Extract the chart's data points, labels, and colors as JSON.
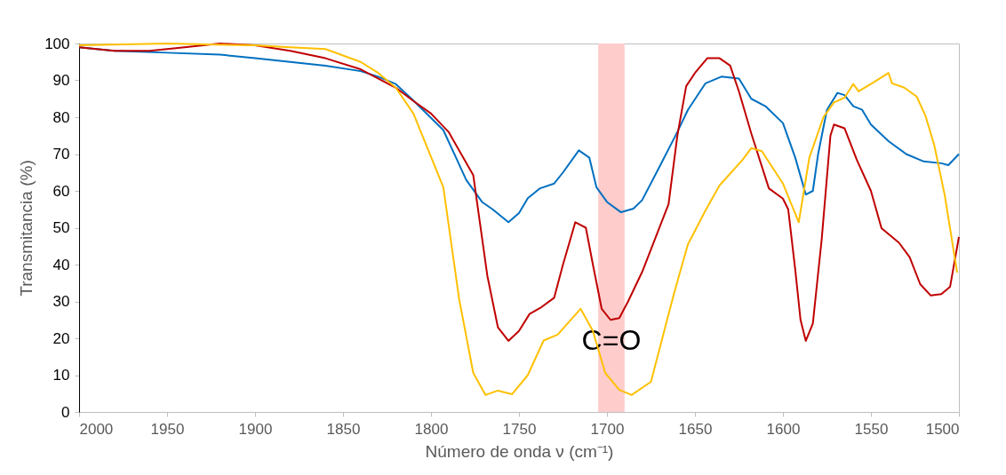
{
  "chart_data": {
    "type": "line",
    "xlabel": "Número de onda ν (cm⁻¹)",
    "ylabel": "Transmitancia (%)",
    "xlim": [
      2000,
      1500
    ],
    "xticks": [
      2000,
      1950,
      1900,
      1850,
      1800,
      1750,
      1700,
      1650,
      1600,
      1550,
      1500
    ],
    "ylim": [
      0,
      100
    ],
    "yticks": [
      0,
      10,
      20,
      30,
      40,
      50,
      60,
      70,
      80,
      90,
      100
    ],
    "grid": false,
    "marker": "none",
    "line_style": "solid",
    "bands": [
      {
        "axis": "x",
        "from": 1705,
        "to": 1690,
        "color": "#ffcccc",
        "label": "C=O"
      }
    ],
    "series": [
      {
        "color": "#0070c0",
        "x": [
          2000,
          1980,
          1950,
          1920,
          1900,
          1880,
          1860,
          1840,
          1830,
          1820,
          1810,
          1793,
          1780,
          1771,
          1765,
          1756,
          1750,
          1745,
          1738,
          1730,
          1725,
          1716,
          1710,
          1706,
          1700,
          1692,
          1685,
          1680,
          1670,
          1660,
          1654,
          1644,
          1635,
          1625,
          1618,
          1610,
          1600,
          1593,
          1587,
          1583,
          1580,
          1575,
          1569,
          1565,
          1560,
          1555,
          1550,
          1540,
          1530,
          1520,
          1510,
          1506,
          1500
        ],
        "values": [
          99,
          98,
          97.5,
          97,
          96,
          95,
          94,
          92.5,
          91,
          89,
          84.5,
          76.5,
          63,
          57,
          55,
          51.5,
          54,
          58,
          60.7,
          62,
          65,
          71,
          69,
          61,
          57,
          54.2,
          55.2,
          57.5,
          66.7,
          76,
          82,
          89.2,
          91,
          90.5,
          85,
          83,
          78.4,
          69,
          59,
          60,
          70,
          82,
          86.6,
          86,
          83,
          82,
          78,
          73.5,
          70,
          68,
          67.5,
          67,
          70
        ]
      },
      {
        "color": "#c00000",
        "x": [
          2000,
          1980,
          1960,
          1940,
          1920,
          1900,
          1880,
          1860,
          1840,
          1820,
          1810,
          1800,
          1790,
          1776,
          1768,
          1762,
          1756,
          1750,
          1744,
          1738,
          1730,
          1725,
          1718,
          1712,
          1708,
          1703,
          1698,
          1693,
          1688,
          1680,
          1665,
          1660,
          1655,
          1650,
          1643,
          1636,
          1630,
          1625,
          1618,
          1608,
          1600,
          1597,
          1593,
          1590,
          1587,
          1583,
          1578,
          1573,
          1571,
          1565,
          1558,
          1550,
          1544,
          1534,
          1528,
          1522,
          1516,
          1510,
          1505,
          1500
        ],
        "values": [
          99,
          98,
          98,
          99,
          100,
          99.5,
          98,
          96,
          93,
          88,
          84.4,
          81,
          76,
          64.3,
          37,
          23,
          19.3,
          22,
          26.6,
          28.2,
          31,
          40,
          51.5,
          50,
          40,
          28,
          25,
          25.5,
          30,
          38,
          56.4,
          75,
          88.4,
          92,
          96,
          96,
          94,
          87,
          75.6,
          60.7,
          57.9,
          55,
          38.6,
          25,
          19.3,
          24,
          46.7,
          75,
          78,
          77,
          68.4,
          60,
          49.9,
          45.9,
          42,
          34.7,
          31.6,
          32,
          34,
          47.5
        ]
      },
      {
        "color": "#ffc000",
        "x": [
          2000,
          1950,
          1900,
          1880,
          1860,
          1840,
          1830,
          1820,
          1810,
          1793,
          1784,
          1776,
          1769,
          1762,
          1754,
          1745,
          1736,
          1728,
          1715,
          1708,
          1701,
          1693,
          1686,
          1675,
          1662,
          1654,
          1644,
          1636,
          1623,
          1618,
          1612,
          1600,
          1591,
          1585,
          1577,
          1571,
          1565,
          1560,
          1557,
          1548,
          1540,
          1538,
          1531,
          1524,
          1519,
          1514,
          1508,
          1501
        ],
        "values": [
          99.5,
          100,
          99.5,
          99,
          98.5,
          95,
          92,
          88,
          81,
          61,
          30.6,
          10.6,
          4.6,
          5.8,
          4.8,
          10,
          19.4,
          21,
          28,
          22,
          10.6,
          6,
          4.6,
          8.2,
          32,
          45.5,
          54.7,
          61.5,
          68.4,
          71.6,
          70.8,
          62,
          51.5,
          69,
          80,
          84,
          85.3,
          89,
          87,
          89.6,
          92,
          89.2,
          88,
          85.6,
          80.4,
          72.4,
          58.7,
          37.8
        ]
      }
    ]
  }
}
